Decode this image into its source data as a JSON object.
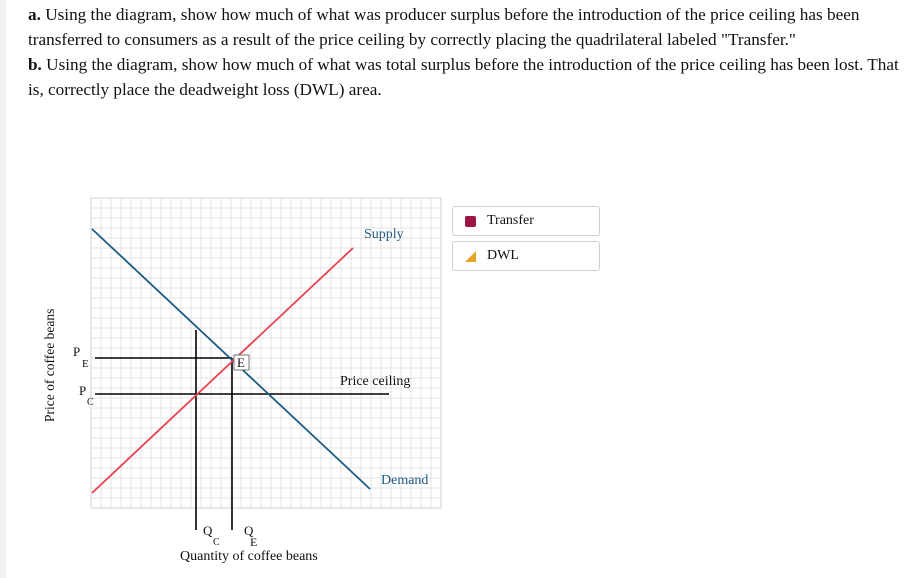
{
  "question": {
    "part_a_label": "a.",
    "part_a_text": "Using the diagram, show how much of what was producer surplus before the introduction of the price ceiling has been transferred to consumers as a result of the price ceiling by correctly placing the quadrilateral labeled \"Transfer.\"",
    "part_b_label": "b.",
    "part_b_text": "Using the diagram, show how much of what was total surplus before the introduction of the price ceiling has been lost. That is, correctly place the deadweight loss (DWL) area."
  },
  "graph": {
    "y_axis_label": "Price of coffee beans",
    "x_axis_label": "Quantity of coffee beans",
    "supply_label": "Supply",
    "demand_label": "Demand",
    "price_ceiling_label": "Price ceiling",
    "equilibrium_label": "E",
    "pe_main": "P",
    "pe_sub": "E",
    "pc_main": "P",
    "pc_sub": "C",
    "qc_main": "Q",
    "qc_sub": "C",
    "qe_main": "Q",
    "qe_sub": "E",
    "colors": {
      "supply": "#e8414f",
      "demand": "#1f5a82",
      "grid": "#e3e3e3",
      "border": "#d0d0d0",
      "lines": "#000000"
    }
  },
  "palette": {
    "transfer_label": "Transfer",
    "transfer_icon": "filled-square-icon",
    "transfer_color": "#9c1546",
    "dwl_label": "DWL",
    "dwl_icon": "triangle-icon",
    "dwl_color": "#e6a326"
  }
}
